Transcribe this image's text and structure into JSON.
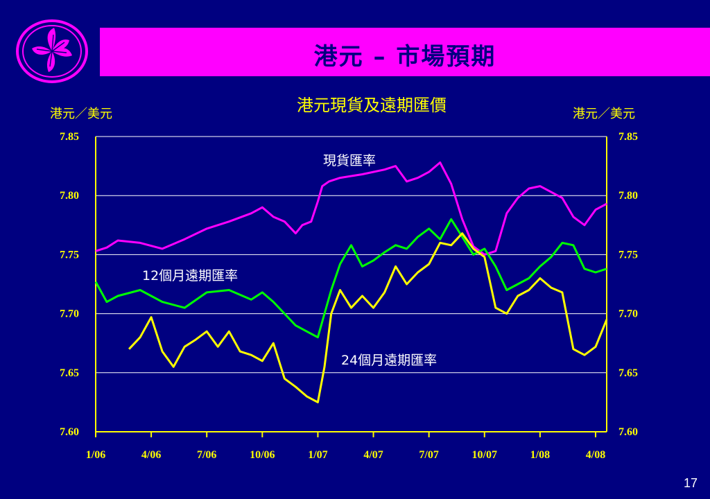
{
  "slide": {
    "title": "港元 – 市場預期",
    "page_number": "17",
    "logo": "hong-kong-bauhinia-emblem"
  },
  "colors": {
    "background": "#000080",
    "title_bar": "#ff00ff",
    "text": "#ffff00",
    "spot": "#ff00ff",
    "forward_12m": "#00ff00",
    "forward_24m": "#ffff00"
  },
  "chart_data": {
    "type": "line",
    "title": "港元現貨及遠期匯價",
    "ylabel_left": "港元／美元",
    "ylabel_right": "港元／美元",
    "ylim": [
      7.6,
      7.85
    ],
    "yticks": [
      "7.60",
      "7.65",
      "7.70",
      "7.75",
      "7.80",
      "7.85"
    ],
    "xticks": [
      "1/06",
      "4/06",
      "7/06",
      "10/06",
      "1/07",
      "4/07",
      "7/07",
      "10/07",
      "1/08",
      "4/08"
    ],
    "xlim": [
      2006.0,
      2008.3
    ],
    "grid": "horizontal",
    "series": [
      {
        "name": "現貨匯率",
        "color": "#ff00ff",
        "x": [
          2006.0,
          2006.05,
          2006.1,
          2006.2,
          2006.3,
          2006.4,
          2006.5,
          2006.6,
          2006.7,
          2006.75,
          2006.8,
          2006.85,
          2006.9,
          2006.93,
          2006.97,
          2007.0,
          2007.02,
          2007.05,
          2007.1,
          2007.2,
          2007.3,
          2007.35,
          2007.4,
          2007.45,
          2007.5,
          2007.55,
          2007.6,
          2007.65,
          2007.7,
          2007.75,
          2007.8,
          2007.85,
          2007.9,
          2007.95,
          2008.0,
          2008.05,
          2008.1,
          2008.15,
          2008.2,
          2008.25,
          2008.3
        ],
        "values": [
          7.753,
          7.756,
          7.762,
          7.76,
          7.755,
          7.763,
          7.772,
          7.778,
          7.785,
          7.79,
          7.782,
          7.778,
          7.768,
          7.775,
          7.778,
          7.795,
          7.808,
          7.812,
          7.815,
          7.818,
          7.822,
          7.825,
          7.812,
          7.815,
          7.82,
          7.828,
          7.81,
          7.78,
          7.757,
          7.75,
          7.753,
          7.785,
          7.798,
          7.806,
          7.808,
          7.803,
          7.798,
          7.782,
          7.775,
          7.788,
          7.793
        ]
      },
      {
        "name": "12個月遠期匯率",
        "color": "#00ff00",
        "x": [
          2006.0,
          2006.05,
          2006.1,
          2006.2,
          2006.3,
          2006.4,
          2006.5,
          2006.6,
          2006.7,
          2006.75,
          2006.8,
          2006.85,
          2006.9,
          2006.95,
          2007.0,
          2007.03,
          2007.06,
          2007.1,
          2007.15,
          2007.2,
          2007.25,
          2007.3,
          2007.35,
          2007.4,
          2007.45,
          2007.5,
          2007.55,
          2007.6,
          2007.65,
          2007.7,
          2007.75,
          2007.8,
          2007.85,
          2007.9,
          2007.95,
          2008.0,
          2008.05,
          2008.1,
          2008.15,
          2008.2,
          2008.25,
          2008.3
        ],
        "values": [
          7.727,
          7.71,
          7.715,
          7.72,
          7.71,
          7.705,
          7.718,
          7.72,
          7.712,
          7.718,
          7.71,
          7.7,
          7.69,
          7.685,
          7.68,
          7.7,
          7.72,
          7.742,
          7.758,
          7.74,
          7.745,
          7.752,
          7.758,
          7.755,
          7.765,
          7.772,
          7.763,
          7.78,
          7.765,
          7.75,
          7.755,
          7.74,
          7.72,
          7.725,
          7.73,
          7.74,
          7.748,
          7.76,
          7.758,
          7.738,
          7.735,
          7.738
        ]
      },
      {
        "name": "24個月遠期匯率",
        "color": "#ffff00",
        "x": [
          2006.15,
          2006.2,
          2006.25,
          2006.3,
          2006.35,
          2006.4,
          2006.45,
          2006.5,
          2006.55,
          2006.6,
          2006.65,
          2006.7,
          2006.75,
          2006.8,
          2006.85,
          2006.9,
          2006.95,
          2007.0,
          2007.03,
          2007.06,
          2007.1,
          2007.15,
          2007.2,
          2007.25,
          2007.3,
          2007.35,
          2007.4,
          2007.45,
          2007.5,
          2007.55,
          2007.6,
          2007.65,
          2007.7,
          2007.75,
          2007.8,
          2007.85,
          2007.9,
          2007.95,
          2008.0,
          2008.05,
          2008.1,
          2008.15,
          2008.2,
          2008.25,
          2008.3
        ],
        "values": [
          7.67,
          7.68,
          7.697,
          7.668,
          7.655,
          7.672,
          7.678,
          7.685,
          7.672,
          7.685,
          7.668,
          7.665,
          7.66,
          7.675,
          7.645,
          7.638,
          7.63,
          7.625,
          7.655,
          7.7,
          7.72,
          7.705,
          7.715,
          7.705,
          7.718,
          7.74,
          7.725,
          7.735,
          7.742,
          7.76,
          7.758,
          7.768,
          7.755,
          7.748,
          7.705,
          7.7,
          7.715,
          7.72,
          7.73,
          7.722,
          7.718,
          7.67,
          7.665,
          7.672,
          7.695
        ]
      }
    ]
  }
}
